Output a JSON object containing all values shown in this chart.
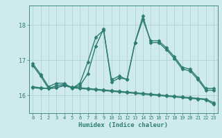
{
  "xlabel": "Humidex (Indice chaleur)",
  "xlim": [
    -0.5,
    23.5
  ],
  "ylim": [
    15.5,
    18.55
  ],
  "yticks": [
    16,
    17,
    18
  ],
  "xticks": [
    0,
    1,
    2,
    3,
    4,
    5,
    6,
    7,
    8,
    9,
    10,
    11,
    12,
    13,
    14,
    15,
    16,
    17,
    18,
    19,
    20,
    21,
    22,
    23
  ],
  "bg_color": "#ceeaec",
  "grid_color": "#aed4d6",
  "line_color": "#2e7d72",
  "curves": [
    {
      "x": [
        0,
        1,
        2,
        3,
        4,
        5,
        6,
        7,
        8,
        9,
        10,
        11,
        12,
        13,
        14,
        15,
        16,
        17,
        18,
        19,
        20,
        21,
        22,
        23
      ],
      "y": [
        16.9,
        16.6,
        16.25,
        16.35,
        16.35,
        16.2,
        16.35,
        16.95,
        17.65,
        17.85,
        16.45,
        16.55,
        16.45,
        17.5,
        18.15,
        17.55,
        17.55,
        17.35,
        17.1,
        16.8,
        16.75,
        16.5,
        16.2,
        16.2
      ],
      "marker": "D",
      "markersize": 2.5,
      "lw": 1.0
    },
    {
      "x": [
        0,
        1,
        2,
        3,
        4,
        5,
        6,
        7,
        8,
        9,
        10,
        11,
        12,
        13,
        14,
        15,
        16,
        17,
        18,
        19,
        20,
        21,
        22,
        23
      ],
      "y": [
        16.85,
        16.55,
        16.2,
        16.28,
        16.32,
        16.22,
        16.28,
        16.62,
        17.4,
        17.88,
        16.38,
        16.5,
        16.46,
        17.5,
        18.25,
        17.5,
        17.5,
        17.3,
        17.05,
        16.75,
        16.7,
        16.45,
        16.15,
        16.15
      ],
      "marker": "D",
      "markersize": 2.5,
      "lw": 1.0
    },
    {
      "x": [
        0,
        1,
        2,
        3,
        4,
        5,
        6,
        7,
        8,
        9,
        10,
        11,
        12,
        13,
        14,
        15,
        16,
        17,
        18,
        19,
        20,
        21,
        22,
        23
      ],
      "y": [
        16.25,
        16.22,
        16.2,
        16.22,
        16.28,
        16.22,
        16.2,
        16.18,
        16.16,
        16.14,
        16.12,
        16.1,
        16.08,
        16.06,
        16.04,
        16.02,
        16.0,
        15.98,
        15.96,
        15.94,
        15.92,
        15.9,
        15.88,
        15.75
      ],
      "marker": "D",
      "markersize": 2.5,
      "lw": 1.0
    },
    {
      "x": [
        0,
        1,
        2,
        3,
        4,
        5,
        6,
        7,
        8,
        9,
        10,
        11,
        12,
        13,
        14,
        15,
        16,
        17,
        18,
        19,
        20,
        21,
        22,
        23
      ],
      "y": [
        16.22,
        16.2,
        16.2,
        16.22,
        16.3,
        16.24,
        16.22,
        16.2,
        16.18,
        16.16,
        16.14,
        16.12,
        16.1,
        16.08,
        16.06,
        16.04,
        16.02,
        16.0,
        15.98,
        15.96,
        15.94,
        15.92,
        15.9,
        15.8
      ],
      "marker": "D",
      "markersize": 2.5,
      "lw": 1.0
    }
  ]
}
